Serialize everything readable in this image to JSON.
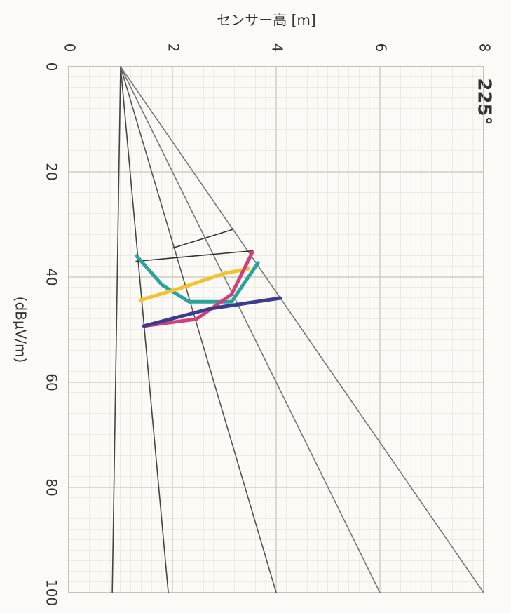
{
  "chart_data": {
    "type": "line",
    "title": "センサー高 [m]",
    "annotation": "225°",
    "y_label": "(dBμV/m)",
    "xlim": [
      0,
      8
    ],
    "xticks": [
      0,
      2,
      4,
      6,
      8
    ],
    "ylim": [
      0,
      100
    ],
    "yticks": [
      0,
      20,
      40,
      60,
      80,
      100
    ],
    "grid": true,
    "series": [
      {
        "color": "#444444",
        "x": [
          1.0,
          0.84
        ],
        "values": [
          0,
          100
        ]
      },
      {
        "color": "#444444",
        "x": [
          1.0,
          1.92
        ],
        "values": [
          0,
          100
        ]
      },
      {
        "color": "#555555",
        "x": [
          1.0,
          4.0
        ],
        "values": [
          0,
          100
        ]
      },
      {
        "color": "#777777",
        "x": [
          1.0,
          6.0
        ],
        "values": [
          0,
          100
        ]
      },
      {
        "color": "#777777",
        "x": [
          1.0,
          8.0
        ],
        "values": [
          0,
          100
        ]
      },
      {
        "color": "#333333",
        "x": [
          1.3,
          3.55
        ],
        "values": [
          37,
          35
        ]
      },
      {
        "color": "#333333",
        "x": [
          2.0,
          3.15
        ],
        "values": [
          34.5,
          31
        ]
      },
      {
        "color": "#2aa39a",
        "x": [
          1.31,
          1.8,
          2.32,
          3.14,
          3.65
        ],
        "values": [
          36,
          41.5,
          44.7,
          44.7,
          37.3
        ]
      },
      {
        "color": "#f2c230",
        "x": [
          1.38,
          2.19,
          3.0,
          3.47
        ],
        "values": [
          44.4,
          42,
          39.3,
          38.4
        ]
      },
      {
        "color": "#d0407a",
        "x": [
          1.45,
          2.46,
          3.14,
          3.54
        ],
        "values": [
          49.3,
          48,
          43.3,
          35.3
        ]
      },
      {
        "color": "#3c3c8c",
        "x": [
          1.45,
          2.73,
          4.08
        ],
        "values": [
          49.3,
          46,
          44
        ]
      }
    ]
  }
}
